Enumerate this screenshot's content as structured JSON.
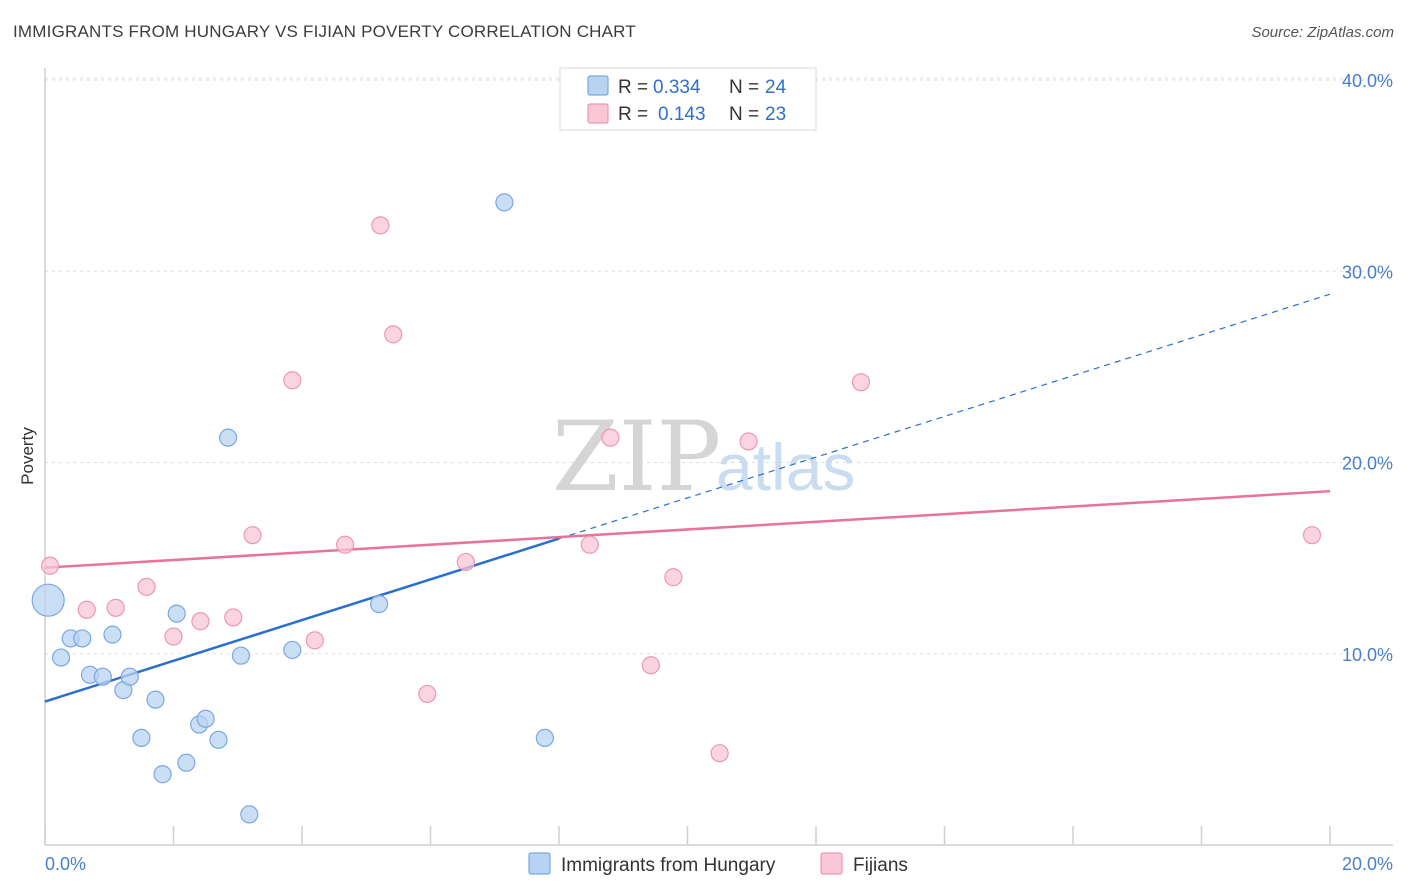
{
  "header": {
    "title": "IMMIGRANTS FROM HUNGARY VS FIJIAN POVERTY CORRELATION CHART",
    "source": "Source: ZipAtlas.com"
  },
  "watermark": {
    "zip": "ZIP",
    "atlas": "atlas"
  },
  "colors": {
    "blue_fill": "#b8d3f2",
    "blue_stroke": "#7aa8e0",
    "blue_line": "#2a6fcf",
    "pink_fill": "#f8c6d5",
    "pink_stroke": "#ec98b2",
    "pink_line": "#e8729a",
    "grid": "#dddddd",
    "tick_text": "#4a7fc8"
  },
  "legend": {
    "rows": [
      {
        "r_label": "R =",
        "r_value": "0.334",
        "n_label": "N =",
        "n_value": "24"
      },
      {
        "r_label": "R =",
        "r_value": "0.143",
        "n_label": "N =",
        "n_value": "23"
      }
    ]
  },
  "chart_data": {
    "type": "scatter",
    "title": "IMMIGRANTS FROM HUNGARY VS FIJIAN POVERTY CORRELATION CHART",
    "xlabel": "",
    "ylabel": "Poverty",
    "xlim": [
      0,
      20
    ],
    "ylim": [
      0,
      40
    ],
    "x_tick_labels": [
      "0.0%",
      "20.0%"
    ],
    "y_ticks": [
      10,
      20,
      30,
      40
    ],
    "y_tick_labels": [
      "10.0%",
      "20.0%",
      "30.0%",
      "40.0%"
    ],
    "series": [
      {
        "name": "Immigrants from Hungary",
        "r": 0.334,
        "n": 24,
        "points": [
          {
            "x": 0.05,
            "y": 12.8,
            "big": true
          },
          {
            "x": 0.25,
            "y": 9.8
          },
          {
            "x": 0.4,
            "y": 10.8
          },
          {
            "x": 0.58,
            "y": 10.8
          },
          {
            "x": 0.7,
            "y": 8.9
          },
          {
            "x": 0.9,
            "y": 8.8
          },
          {
            "x": 1.05,
            "y": 11.0
          },
          {
            "x": 1.22,
            "y": 8.1
          },
          {
            "x": 1.32,
            "y": 8.8
          },
          {
            "x": 1.5,
            "y": 5.6
          },
          {
            "x": 1.72,
            "y": 7.6
          },
          {
            "x": 1.83,
            "y": 3.7
          },
          {
            "x": 2.05,
            "y": 12.1
          },
          {
            "x": 2.2,
            "y": 4.3
          },
          {
            "x": 2.4,
            "y": 6.3
          },
          {
            "x": 2.5,
            "y": 6.6
          },
          {
            "x": 2.7,
            "y": 5.5
          },
          {
            "x": 2.85,
            "y": 21.3
          },
          {
            "x": 3.05,
            "y": 9.9
          },
          {
            "x": 3.18,
            "y": 1.6
          },
          {
            "x": 3.85,
            "y": 10.2
          },
          {
            "x": 5.2,
            "y": 12.6
          },
          {
            "x": 7.15,
            "y": 33.6
          },
          {
            "x": 7.78,
            "y": 5.6
          }
        ],
        "trend": {
          "x0": 0,
          "y0": 7.5,
          "x1_solid": 8.0,
          "x1": 20,
          "y1": 28.8
        }
      },
      {
        "name": "Fijians",
        "r": 0.143,
        "n": 23,
        "points": [
          {
            "x": 0.08,
            "y": 14.6
          },
          {
            "x": 0.65,
            "y": 12.3
          },
          {
            "x": 1.1,
            "y": 12.4
          },
          {
            "x": 1.58,
            "y": 13.5
          },
          {
            "x": 2.0,
            "y": 10.9
          },
          {
            "x": 2.42,
            "y": 11.7
          },
          {
            "x": 2.93,
            "y": 11.9
          },
          {
            "x": 3.23,
            "y": 16.2
          },
          {
            "x": 3.85,
            "y": 24.3
          },
          {
            "x": 4.2,
            "y": 10.7
          },
          {
            "x": 4.67,
            "y": 15.7
          },
          {
            "x": 5.22,
            "y": 32.4
          },
          {
            "x": 5.42,
            "y": 26.7
          },
          {
            "x": 5.95,
            "y": 7.9
          },
          {
            "x": 6.55,
            "y": 14.8
          },
          {
            "x": 8.48,
            "y": 15.7
          },
          {
            "x": 8.8,
            "y": 21.3
          },
          {
            "x": 9.43,
            "y": 9.4
          },
          {
            "x": 9.78,
            "y": 14.0
          },
          {
            "x": 10.5,
            "y": 4.8
          },
          {
            "x": 10.95,
            "y": 21.1
          },
          {
            "x": 12.7,
            "y": 24.2
          },
          {
            "x": 19.72,
            "y": 16.2
          }
        ],
        "trend": {
          "x0": 0,
          "y0": 14.5,
          "x1": 20,
          "y1": 18.5
        }
      }
    ]
  }
}
